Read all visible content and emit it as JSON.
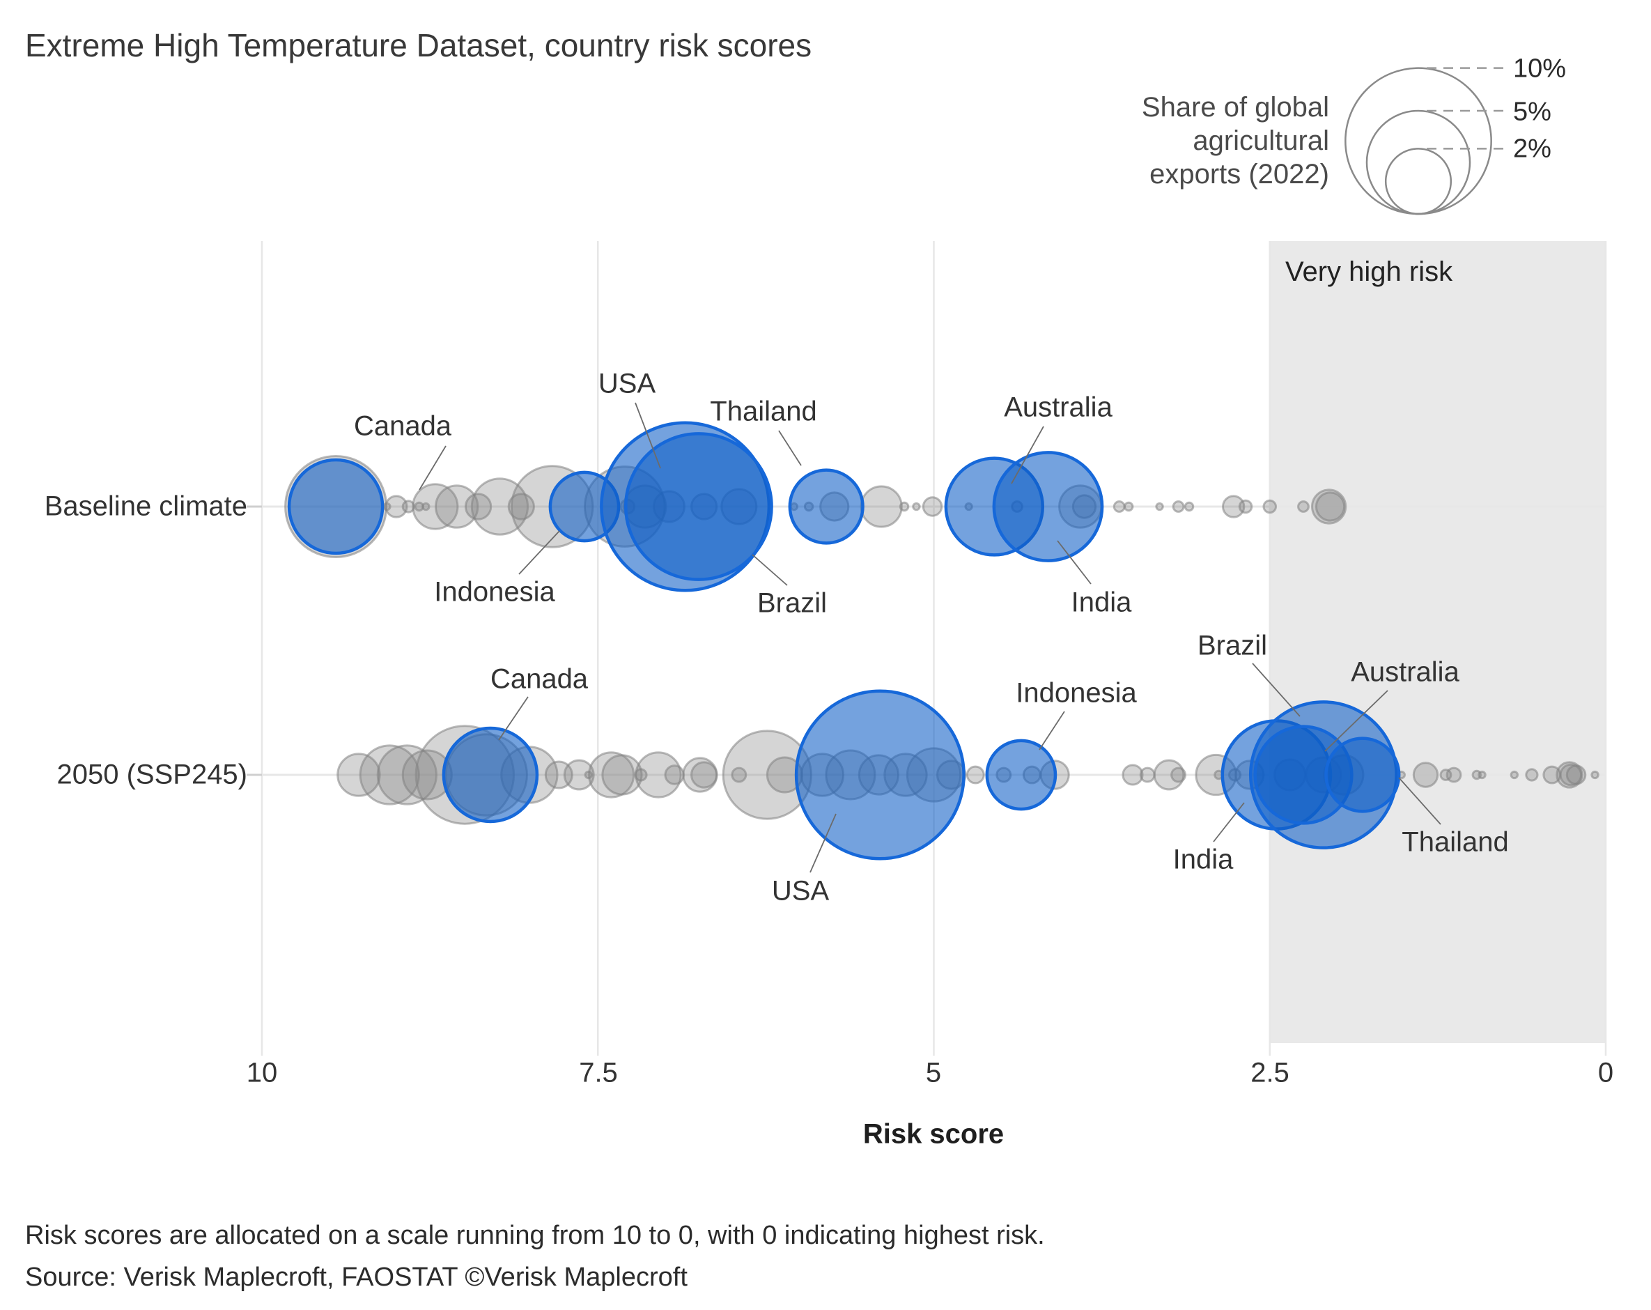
{
  "title": "Extreme High Temperature Dataset, country risk scores",
  "legend": {
    "caption_lines": [
      "Share of global",
      "agricultural",
      "exports (2022)"
    ],
    "sizes": [
      "10%",
      "5%",
      "2%"
    ]
  },
  "region_label": "Very high risk",
  "xaxis": {
    "title": "Risk score",
    "ticks": [
      "10",
      "7.5",
      "5",
      "2.5",
      "0"
    ]
  },
  "rows": [
    {
      "label": "Baseline climate"
    },
    {
      "label": "2050 (SSP245)"
    }
  ],
  "footnotes": [
    "Risk scores are allocated on a scale running from 10 to 0, with 0 indicating highest risk.",
    "Source: Verisk Maplecroft, FAOSTAT ©Verisk Maplecroft"
  ],
  "colors": {
    "highlight_fill": "rgba(16,95,199,0.58)",
    "highlight_stroke": "#1668d9",
    "other_fill": "rgba(135,135,135,0.35)",
    "other_stroke": "rgba(130,130,130,0.55)",
    "region_fill": "#e9e9e9",
    "grid": "#e7e7e7",
    "leader": "#6b6b6b",
    "legend_circle_stroke": "#8a8a8a"
  },
  "chart_data": {
    "type": "scatter",
    "title": "Extreme High Temperature Dataset, country risk scores",
    "xlabel": "Risk score",
    "x_axis": {
      "min": 0,
      "max": 10,
      "reversed": true,
      "tick_values": [
        10,
        7.5,
        5,
        2.5,
        0
      ]
    },
    "size_encoding": "Share of global agricultural exports (2022), %",
    "size_legend_pct": [
      10,
      5,
      2
    ],
    "very_high_risk_region": {
      "from": 2.5,
      "to": 0,
      "label": "Very high risk"
    },
    "rows": [
      {
        "label": "Baseline climate",
        "highlighted": [
          {
            "country": "Canada",
            "risk": 9.45,
            "share": 4.1
          },
          {
            "country": "Indonesia",
            "risk": 7.6,
            "share": 2.2
          },
          {
            "country": "USA",
            "risk": 6.85,
            "share": 13.2
          },
          {
            "country": "Brazil",
            "risk": 6.75,
            "share": 10.0
          },
          {
            "country": "Thailand",
            "risk": 5.8,
            "share": 2.5
          },
          {
            "country": "Australia",
            "risk": 4.55,
            "share": 4.4
          },
          {
            "country": "India",
            "risk": 4.15,
            "share": 5.5
          }
        ],
        "others": [
          [
            9.45,
            4.8
          ],
          [
            9.07,
            0.02
          ],
          [
            9.0,
            0.21
          ],
          [
            8.91,
            0.06
          ],
          [
            8.83,
            0.03
          ],
          [
            8.78,
            0.02
          ],
          [
            8.71,
            0.94
          ],
          [
            8.55,
            0.83
          ],
          [
            8.39,
            0.3
          ],
          [
            8.23,
            1.47
          ],
          [
            8.07,
            0.3
          ],
          [
            7.84,
            3.1
          ],
          [
            7.3,
            3.0
          ],
          [
            7.28,
            0.09
          ],
          [
            7.15,
            0.83
          ],
          [
            6.97,
            0.44
          ],
          [
            6.71,
            0.3
          ],
          [
            6.45,
            0.57
          ],
          [
            6.04,
            0.02
          ],
          [
            5.93,
            0.03
          ],
          [
            5.74,
            0.37
          ],
          [
            5.39,
            0.77
          ],
          [
            5.22,
            0.03
          ],
          [
            5.13,
            0.02
          ],
          [
            5.01,
            0.16
          ],
          [
            4.74,
            0.02
          ],
          [
            4.38,
            0.05
          ],
          [
            3.91,
            0.83
          ],
          [
            3.88,
            0.24
          ],
          [
            3.62,
            0.05
          ],
          [
            3.55,
            0.03
          ],
          [
            3.32,
            0.02
          ],
          [
            3.18,
            0.05
          ],
          [
            3.1,
            0.03
          ],
          [
            2.77,
            0.21
          ],
          [
            2.68,
            0.07
          ],
          [
            2.5,
            0.07
          ],
          [
            2.25,
            0.05
          ],
          [
            2.06,
            0.53
          ],
          [
            2.05,
            0.37
          ]
        ]
      },
      {
        "label": "2050 (SSP245)",
        "highlighted": [
          {
            "country": "Canada",
            "risk": 8.3,
            "share": 4.1
          },
          {
            "country": "USA",
            "risk": 5.4,
            "share": 13.2
          },
          {
            "country": "Indonesia",
            "risk": 4.35,
            "share": 2.2
          },
          {
            "country": "India",
            "risk": 2.45,
            "share": 5.5
          },
          {
            "country": "Brazil",
            "risk": 2.1,
            "share": 10.0
          },
          {
            "country": "Australia",
            "risk": 2.25,
            "share": 4.4
          },
          {
            "country": "Thailand",
            "risk": 1.81,
            "share": 2.5
          }
        ],
        "others": [
          [
            9.28,
            0.83
          ],
          [
            9.05,
            1.62
          ],
          [
            8.92,
            1.62
          ],
          [
            8.77,
            1.12
          ],
          [
            8.49,
            4.5
          ],
          [
            8.33,
            3.1
          ],
          [
            8.01,
            1.47
          ],
          [
            7.79,
            0.33
          ],
          [
            7.64,
            0.4
          ],
          [
            7.57,
            0.02
          ],
          [
            7.4,
            0.94
          ],
          [
            7.32,
            0.72
          ],
          [
            7.18,
            0.06
          ],
          [
            7.05,
            0.94
          ],
          [
            6.93,
            0.16
          ],
          [
            6.74,
            0.53
          ],
          [
            6.71,
            0.3
          ],
          [
            6.45,
            0.09
          ],
          [
            6.24,
            3.64
          ],
          [
            6.11,
            0.57
          ],
          [
            5.83,
            0.83
          ],
          [
            5.62,
            1.12
          ],
          [
            5.41,
            0.72
          ],
          [
            5.21,
            0.83
          ],
          [
            5.0,
            1.33
          ],
          [
            4.87,
            0.37
          ],
          [
            4.69,
            0.13
          ],
          [
            4.48,
            0.09
          ],
          [
            4.27,
            0.13
          ],
          [
            4.1,
            0.37
          ],
          [
            3.52,
            0.18
          ],
          [
            3.41,
            0.09
          ],
          [
            3.25,
            0.4
          ],
          [
            3.18,
            0.09
          ],
          [
            2.9,
            0.75
          ],
          [
            2.88,
            0.03
          ],
          [
            2.76,
            0.06
          ],
          [
            2.65,
            0.37
          ],
          [
            2.35,
            0.44
          ],
          [
            2.1,
            0.57
          ],
          [
            1.95,
            0.72
          ],
          [
            1.52,
            0.02
          ],
          [
            1.34,
            0.27
          ],
          [
            1.19,
            0.05
          ],
          [
            1.13,
            0.09
          ],
          [
            0.96,
            0.03
          ],
          [
            0.92,
            0.02
          ],
          [
            0.68,
            0.02
          ],
          [
            0.55,
            0.06
          ],
          [
            0.4,
            0.13
          ],
          [
            0.27,
            0.3
          ],
          [
            0.26,
            0.2
          ],
          [
            0.22,
            0.16
          ],
          [
            0.08,
            0.02
          ]
        ]
      }
    ]
  }
}
